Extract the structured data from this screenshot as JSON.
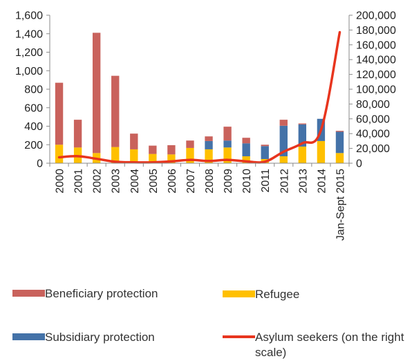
{
  "chart_data": {
    "type": "bar+line",
    "categories": [
      "2000",
      "2001",
      "2002",
      "2003",
      "2004",
      "2005",
      "2006",
      "2007",
      "2008",
      "2009",
      "2010",
      "2011",
      "2012",
      "2013",
      "2014",
      "Jan-Sept 2015"
    ],
    "series": [
      {
        "name": "Refugee",
        "kind": "stacked-bar",
        "axis": "left",
        "color": "#FFC000",
        "values": [
          200,
          170,
          110,
          175,
          150,
          100,
          95,
          165,
          150,
          170,
          75,
          45,
          75,
          180,
          240,
          110
        ]
      },
      {
        "name": "Subsidiary protection",
        "kind": "stacked-bar",
        "axis": "left",
        "color": "#4472A8",
        "values": [
          0,
          0,
          0,
          0,
          0,
          0,
          0,
          0,
          90,
          75,
          140,
          140,
          330,
          240,
          240,
          230
        ]
      },
      {
        "name": "Beneficiary protection",
        "kind": "stacked-bar",
        "axis": "left",
        "color": "#C9625C",
        "values": [
          670,
          300,
          1300,
          770,
          170,
          90,
          100,
          80,
          50,
          150,
          60,
          15,
          65,
          10,
          0,
          10
        ]
      },
      {
        "name": "Asylum seekers (on the right scale)",
        "kind": "line",
        "axis": "right",
        "color": "#E8351E",
        "values": [
          8000,
          9500,
          6000,
          2000,
          1200,
          1200,
          2500,
          4500,
          3000,
          4500,
          2500,
          2000,
          15500,
          27000,
          45000,
          177000
        ]
      }
    ],
    "y_left": {
      "min": 0,
      "max": 1600,
      "ticks": [
        0,
        200,
        400,
        600,
        800,
        1000,
        1200,
        1400,
        1600
      ],
      "tick_labels": [
        "0",
        "200",
        "400",
        "600",
        "800",
        "1,000",
        "1,200",
        "1,400",
        "1,600"
      ]
    },
    "y_right": {
      "min": 0,
      "max": 200000,
      "ticks": [
        0,
        20000,
        40000,
        60000,
        80000,
        100000,
        120000,
        140000,
        160000,
        180000,
        200000
      ],
      "tick_labels": [
        "0",
        "20,000",
        "40,000",
        "60,000",
        "80,000",
        "100,000",
        "120,000",
        "140,000",
        "160,000",
        "180,000",
        "200,000"
      ]
    },
    "grid": false,
    "legend_position": "bottom",
    "title": "",
    "xlabel": "",
    "ylabel": ""
  },
  "legend": {
    "beneficiary": "Beneficiary protection",
    "refugee": "Refugee",
    "subsidiary": "Subsidiary protection",
    "asylum": "Asylum seekers (on the right scale)"
  }
}
